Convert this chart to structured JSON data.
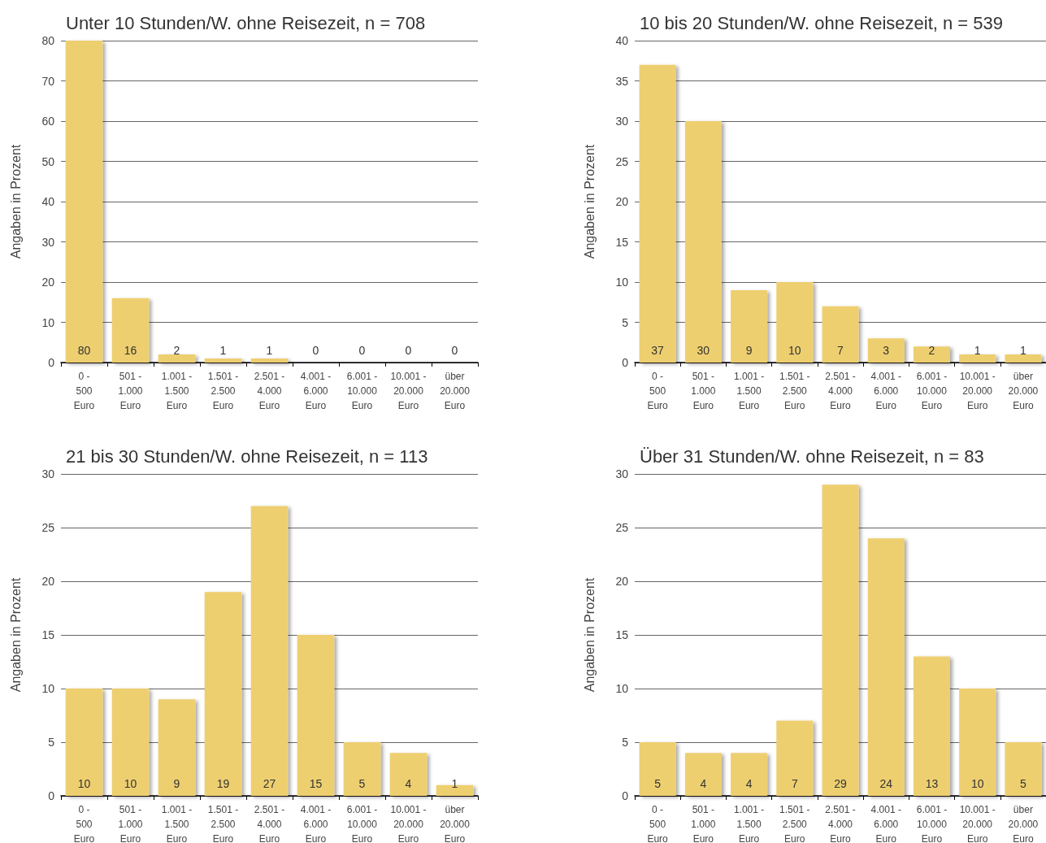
{
  "chart_data": [
    {
      "type": "bar",
      "title": "Unter 10 Stunden/W. ohne Reisezeit, n = 708",
      "ylabel": "Angaben in Prozent",
      "categories": [
        "0 -\n500\nEuro",
        "501 -\n1.000\nEuro",
        "1.001 -\n1.500\nEuro",
        "1.501 -\n2.500\nEuro",
        "2.501 -\n4.000\nEuro",
        "4.001 -\n6.000\nEuro",
        "6.001 -\n10.000\nEuro",
        "10.001 -\n20.000\nEuro",
        "über\n20.000\nEuro"
      ],
      "values": [
        80,
        16,
        2,
        1,
        1,
        0,
        0,
        0,
        0
      ],
      "color": "#eecf6f",
      "ylim": [
        0,
        80
      ],
      "yticks": [
        0,
        10,
        20,
        30,
        40,
        50,
        60,
        70,
        80
      ],
      "grid": "y",
      "data_labels": true
    },
    {
      "type": "bar",
      "title": "10 bis 20 Stunden/W. ohne Reisezeit, n = 539",
      "ylabel": "Angaben in Prozent",
      "categories": [
        "0 -\n500\nEuro",
        "501 -\n1.000\nEuro",
        "1.001 -\n1.500\nEuro",
        "1.501 -\n2.500\nEuro",
        "2.501 -\n4.000\nEuro",
        "4.001 -\n6.000\nEuro",
        "6.001 -\n10.000\nEuro",
        "10.001 -\n20.000\nEuro",
        "über\n20.000\nEuro"
      ],
      "values": [
        37,
        30,
        9,
        10,
        7,
        3,
        2,
        1,
        1
      ],
      "color": "#eecf6f",
      "ylim": [
        0,
        40
      ],
      "yticks": [
        0,
        5,
        10,
        15,
        20,
        25,
        30,
        35,
        40
      ],
      "grid": "y",
      "data_labels": true
    },
    {
      "type": "bar",
      "title": "21 bis 30 Stunden/W. ohne Reisezeit, n = 113",
      "ylabel": "Angaben in Prozent",
      "categories": [
        "0 -\n500\nEuro",
        "501 -\n1.000\nEuro",
        "1.001 -\n1.500\nEuro",
        "1.501 -\n2.500\nEuro",
        "2.501 -\n4.000\nEuro",
        "4.001 -\n6.000\nEuro",
        "6.001 -\n10.000\nEuro",
        "10.001 -\n20.000\nEuro",
        "über\n20.000\nEuro"
      ],
      "values": [
        10,
        10,
        9,
        19,
        27,
        15,
        5,
        4,
        1
      ],
      "color": "#eecf6f",
      "ylim": [
        0,
        30
      ],
      "yticks": [
        0,
        5,
        10,
        15,
        20,
        25,
        30
      ],
      "grid": "y",
      "data_labels": true
    },
    {
      "type": "bar",
      "title": "Über 31 Stunden/W. ohne Reisezeit, n = 83",
      "ylabel": "Angaben in Prozent",
      "categories": [
        "0 -\n500\nEuro",
        "501 -\n1.000\nEuro",
        "1.001 -\n1.500\nEuro",
        "1.501 -\n2.500\nEuro",
        "2.501 -\n4.000\nEuro",
        "4.001 -\n6.000\nEuro",
        "6.001 -\n10.000\nEuro",
        "10.001 -\n20.000\nEuro",
        "über\n20.000\nEuro"
      ],
      "values": [
        5,
        4,
        4,
        7,
        29,
        24,
        13,
        10,
        5
      ],
      "color": "#eecf6f",
      "ylim": [
        0,
        30
      ],
      "yticks": [
        0,
        5,
        10,
        15,
        20,
        25,
        30
      ],
      "grid": "y",
      "data_labels": true
    }
  ]
}
